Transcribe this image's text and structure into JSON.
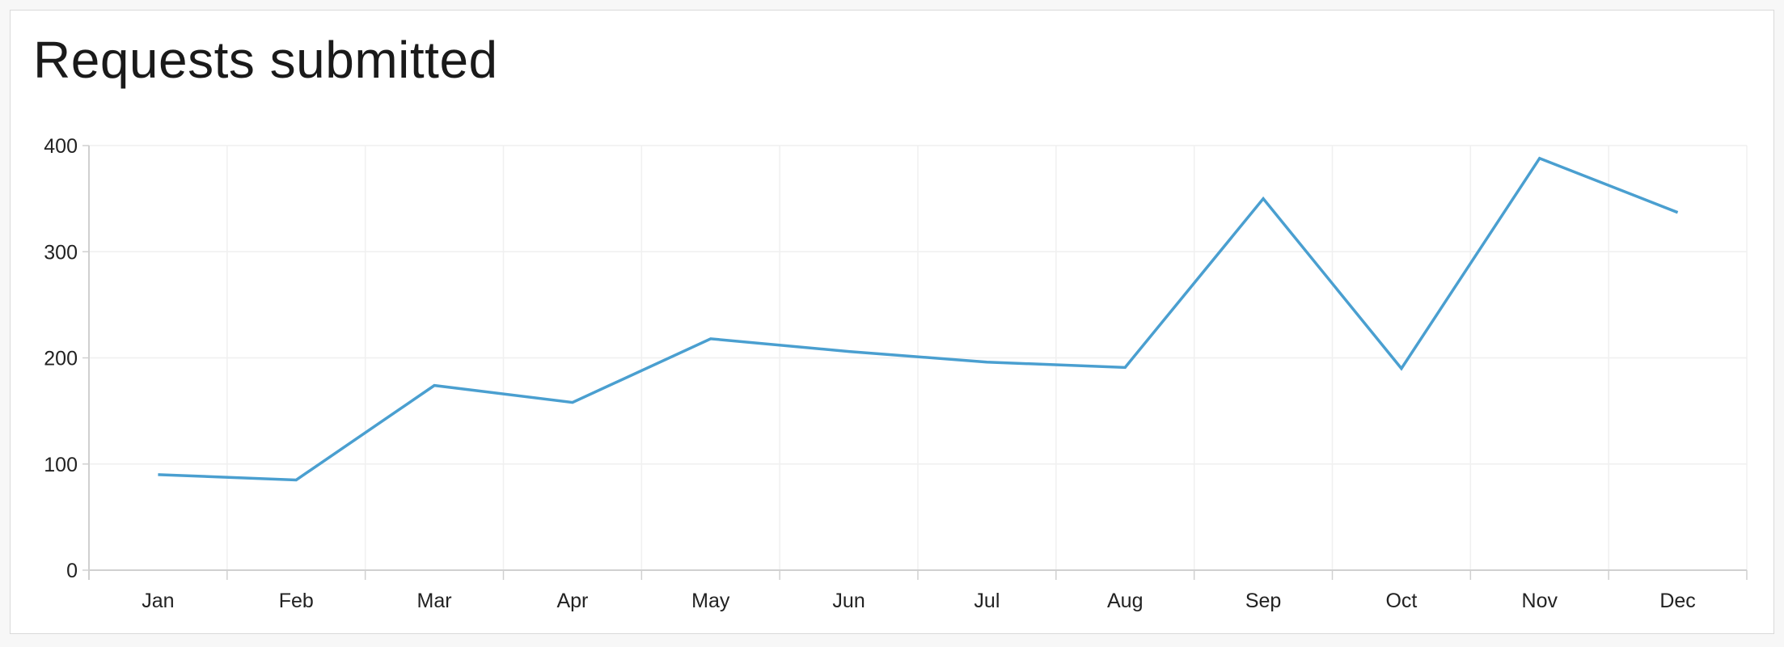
{
  "title": "Requests submitted",
  "chart_data": {
    "type": "line",
    "title": "Requests submitted",
    "xlabel": "",
    "ylabel": "",
    "categories": [
      "Jan",
      "Feb",
      "Mar",
      "Apr",
      "May",
      "Jun",
      "Jul",
      "Aug",
      "Sep",
      "Oct",
      "Nov",
      "Dec"
    ],
    "values": [
      90,
      85,
      174,
      158,
      218,
      206,
      196,
      191,
      350,
      190,
      388,
      337
    ],
    "ylim": [
      0,
      400
    ],
    "yticks": [
      0,
      100,
      200,
      300,
      400
    ],
    "grid": true,
    "legend": "none",
    "line_color": "#4a9fd0"
  }
}
